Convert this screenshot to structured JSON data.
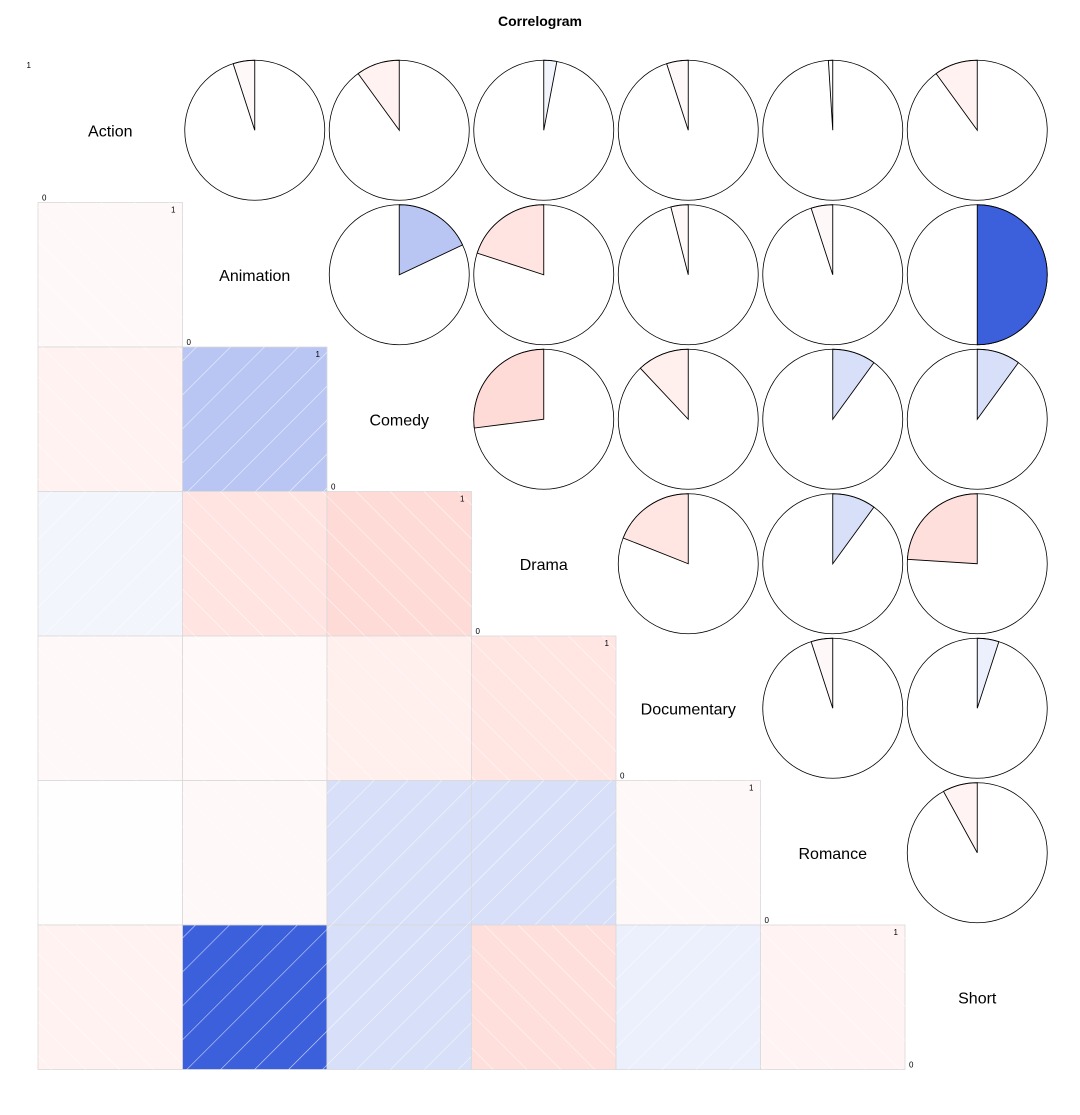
{
  "chart_data": {
    "type": "heatmap",
    "title": "Correlogram",
    "variables": [
      "Action",
      "Animation",
      "Comedy",
      "Drama",
      "Documentary",
      "Romance",
      "Short"
    ],
    "lower_panel": "shade",
    "upper_panel": "pie",
    "diagonal_range_labels": {
      "max": "1",
      "min": "0"
    },
    "correlations": [
      [
        1.0,
        -0.05,
        -0.1,
        0.03,
        -0.05,
        -0.01,
        -0.1
      ],
      [
        -0.05,
        1.0,
        0.18,
        -0.2,
        -0.04,
        -0.05,
        0.5
      ],
      [
        -0.1,
        0.18,
        1.0,
        -0.27,
        -0.12,
        0.1,
        0.1
      ],
      [
        0.03,
        -0.2,
        -0.27,
        1.0,
        -0.19,
        0.1,
        -0.24
      ],
      [
        -0.05,
        -0.04,
        -0.12,
        -0.19,
        1.0,
        -0.05,
        0.05
      ],
      [
        -0.01,
        -0.05,
        0.1,
        0.1,
        -0.05,
        1.0,
        -0.08
      ],
      [
        -0.1,
        0.5,
        0.1,
        -0.24,
        0.05,
        -0.08,
        1.0
      ]
    ],
    "colors": {
      "positive_strong": "#3c5fdc",
      "negative_strong": "#ffbcb5",
      "neutral": "#ffffff",
      "grid_line": "#d9d9d9"
    }
  }
}
